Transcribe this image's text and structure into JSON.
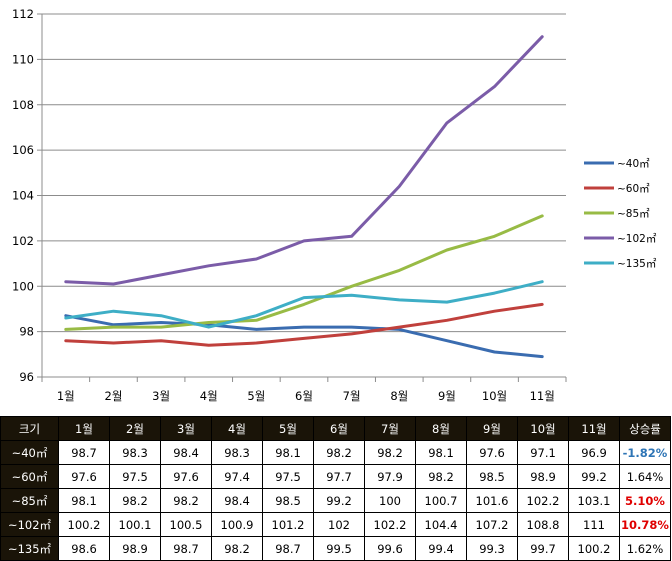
{
  "chart_data": {
    "type": "line",
    "categories": [
      "1월",
      "2월",
      "3월",
      "4월",
      "5월",
      "6월",
      "7월",
      "8월",
      "9월",
      "10월",
      "11월"
    ],
    "ylim": [
      96,
      112
    ],
    "yticks": [
      96,
      98,
      100,
      102,
      104,
      106,
      108,
      110,
      112
    ],
    "grid": true,
    "legend_position": "right",
    "series": [
      {
        "name": "~40㎡",
        "color": "#3a6cb0",
        "values": [
          98.7,
          98.3,
          98.4,
          98.3,
          98.1,
          98.2,
          98.2,
          98.1,
          97.6,
          97.1,
          96.9
        ]
      },
      {
        "name": "~60㎡",
        "color": "#c0403c",
        "values": [
          97.6,
          97.5,
          97.6,
          97.4,
          97.5,
          97.7,
          97.9,
          98.2,
          98.5,
          98.9,
          99.2
        ]
      },
      {
        "name": "~85㎡",
        "color": "#98bb45",
        "values": [
          98.1,
          98.2,
          98.2,
          98.4,
          98.5,
          99.2,
          100,
          100.7,
          101.6,
          102.2,
          103.1
        ]
      },
      {
        "name": "~102㎡",
        "color": "#7b5ca8",
        "values": [
          100.2,
          100.1,
          100.5,
          100.9,
          101.2,
          102,
          102.2,
          104.4,
          107.2,
          108.8,
          111
        ]
      },
      {
        "name": "~135㎡",
        "color": "#3eaec6",
        "values": [
          98.6,
          98.9,
          98.7,
          98.2,
          98.7,
          99.5,
          99.6,
          99.4,
          99.3,
          99.7,
          100.2
        ]
      }
    ]
  },
  "table": {
    "header": [
      "크기",
      "1월",
      "2월",
      "3월",
      "4월",
      "5월",
      "6월",
      "7월",
      "8월",
      "9월",
      "10월",
      "11월",
      "상승률"
    ],
    "rows": [
      {
        "label": "~40㎡",
        "cells": [
          "98.7",
          "98.3",
          "98.4",
          "98.3",
          "98.1",
          "98.2",
          "98.2",
          "98.1",
          "97.6",
          "97.1",
          "96.9"
        ],
        "rate": "-1.82%",
        "rate_color": "#2e75b6"
      },
      {
        "label": "~60㎡",
        "cells": [
          "97.6",
          "97.5",
          "97.6",
          "97.4",
          "97.5",
          "97.7",
          "97.9",
          "98.2",
          "98.5",
          "98.9",
          "99.2"
        ],
        "rate": "1.64%",
        "rate_color": "#000000"
      },
      {
        "label": "~85㎡",
        "cells": [
          "98.1",
          "98.2",
          "98.2",
          "98.4",
          "98.5",
          "99.2",
          "100",
          "100.7",
          "101.6",
          "102.2",
          "103.1"
        ],
        "rate": "5.10%",
        "rate_color": "#e00000"
      },
      {
        "label": "~102㎡",
        "cells": [
          "100.2",
          "100.1",
          "100.5",
          "100.9",
          "101.2",
          "102",
          "102.2",
          "104.4",
          "107.2",
          "108.8",
          "111"
        ],
        "rate": "10.78%",
        "rate_color": "#e00000"
      },
      {
        "label": "~135㎡",
        "cells": [
          "98.6",
          "98.9",
          "98.7",
          "98.2",
          "98.7",
          "99.5",
          "99.6",
          "99.4",
          "99.3",
          "99.7",
          "100.2"
        ],
        "rate": "1.62%",
        "rate_color": "#000000"
      }
    ]
  }
}
